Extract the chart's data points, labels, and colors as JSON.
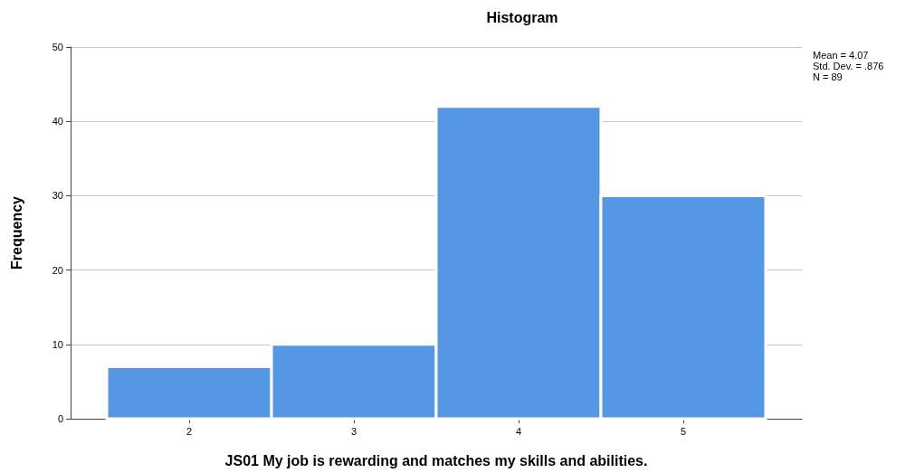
{
  "chart_data": {
    "type": "histogram",
    "title": "Histogram",
    "xlabel": "JS01 My job is rewarding and matches my skills and abilities.",
    "ylabel": "Frequency",
    "bins": [
      1.5,
      2.5,
      3.5,
      4.5,
      5.5
    ],
    "values": [
      7,
      10,
      42,
      30
    ],
    "color": "#5597e4",
    "xlim": [
      1.28,
      5.72
    ],
    "xticks": [
      2,
      3,
      4,
      5
    ],
    "ylim": [
      0,
      50
    ],
    "yticks": [
      0,
      10,
      20,
      30,
      40,
      50
    ],
    "grid": "y",
    "annotations": [
      "Mean = 4.07",
      "Std. Dev. = .876",
      "N = 89"
    ]
  }
}
